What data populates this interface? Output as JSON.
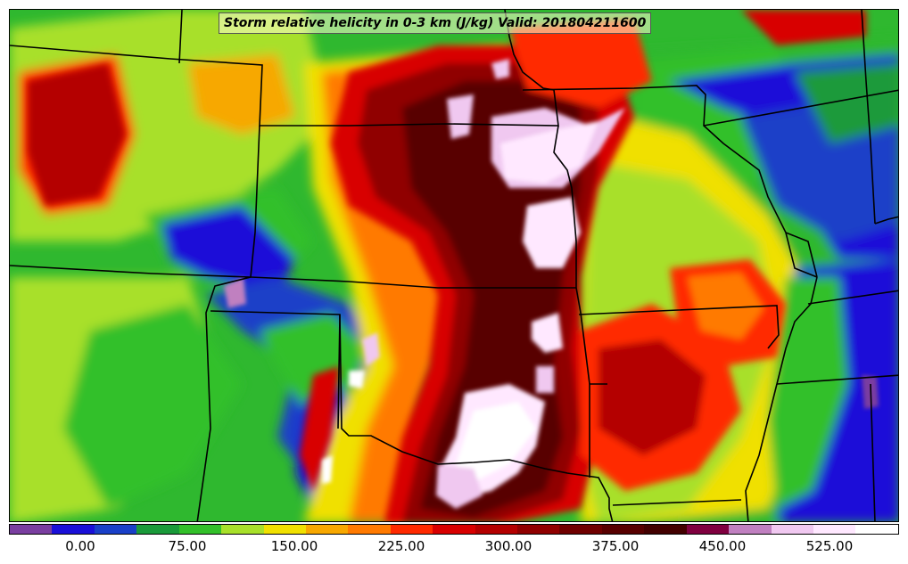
{
  "title": "Storm relative helicity in 0-3 km (J/kg) Valid: 201804211600",
  "colorbar": {
    "colors": [
      "#7a3ea0",
      "#1a10d8",
      "#1a40c8",
      "#1a9a3a",
      "#33c02a",
      "#a8e02a",
      "#f0e000",
      "#f7a800",
      "#ff7a00",
      "#ff2a00",
      "#d80000",
      "#b40000",
      "#900000",
      "#700000",
      "#580000",
      "#430000",
      "#800040",
      "#c080c0",
      "#f0c8f0",
      "#ffe8ff",
      "#ffffff"
    ],
    "ticks": [
      "0.00",
      "75.00",
      "150.00",
      "225.00",
      "300.00",
      "375.00",
      "450.00",
      "525.00"
    ]
  },
  "map": {
    "background": "#2fb82f",
    "state_border_color": "#000000"
  }
}
